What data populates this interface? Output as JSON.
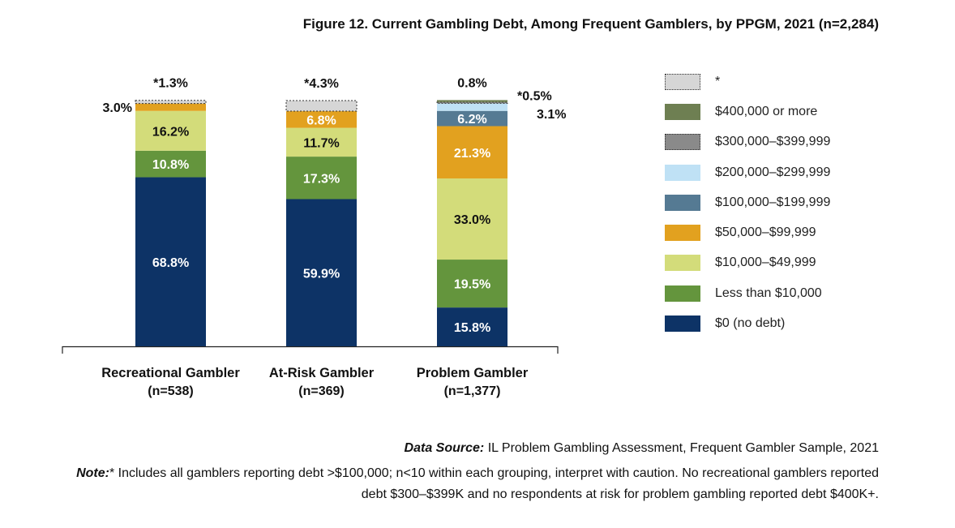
{
  "title": "Figure 12. Current Gambling Debt, Among Frequent Gamblers, by PPGM, 2021 (n=2,284)",
  "colors": {
    "star": "#d6d6d6",
    "400k": "#6e7f52",
    "300k": "#8a8a8a",
    "200k": "#bfe1f5",
    "100k": "#557a93",
    "50k": "#e2a11f",
    "10k": "#d3dc7a",
    "lt10k": "#64953d",
    "zero": "#0d3366"
  },
  "legend": [
    {
      "key": "star",
      "label": "*",
      "dashed": true
    },
    {
      "key": "400k",
      "label": "$400,000 or more",
      "dashed": false
    },
    {
      "key": "300k",
      "label": "$300,000–$399,999",
      "dashed": true
    },
    {
      "key": "200k",
      "label": "$200,000–$299,999",
      "dashed": false
    },
    {
      "key": "100k",
      "label": "$100,000–$199,999",
      "dashed": false
    },
    {
      "key": "50k",
      "label": "$50,000–$99,999",
      "dashed": false
    },
    {
      "key": "10k",
      "label": "$10,000–$49,999",
      "dashed": false
    },
    {
      "key": "lt10k",
      "label": "Less than $10,000",
      "dashed": false
    },
    {
      "key": "zero",
      "label": "$0 (no debt)",
      "dashed": false
    }
  ],
  "chart_data": {
    "type": "bar",
    "stacked": true,
    "title": "Figure 12. Current Gambling Debt, Among Frequent Gamblers, by PPGM, 2021 (n=2,284)",
    "ylim": [
      0,
      100
    ],
    "categories": [
      {
        "name": "Recreational Gambler",
        "n": "(n=538)"
      },
      {
        "name": "At-Risk Gambler",
        "n": "(n=369)"
      },
      {
        "name": "Problem Gambler",
        "n": "(n=1,377)"
      }
    ],
    "bars": [
      {
        "segments": [
          {
            "key": "zero",
            "value": 68.8,
            "label": "68.8%"
          },
          {
            "key": "lt10k",
            "value": 10.8,
            "label": "10.8%"
          },
          {
            "key": "10k",
            "value": 16.2,
            "label": "16.2%"
          },
          {
            "key": "50k",
            "value": 3.0,
            "label": "3.0%"
          },
          {
            "key": "star",
            "value": 1.3,
            "label": "*1.3%"
          }
        ]
      },
      {
        "segments": [
          {
            "key": "zero",
            "value": 59.9,
            "label": "59.9%"
          },
          {
            "key": "lt10k",
            "value": 17.3,
            "label": "17.3%"
          },
          {
            "key": "10k",
            "value": 11.7,
            "label": "11.7%"
          },
          {
            "key": "50k",
            "value": 6.8,
            "label": "6.8%"
          },
          {
            "key": "star",
            "value": 4.3,
            "label": "*4.3%"
          }
        ]
      },
      {
        "segments": [
          {
            "key": "zero",
            "value": 15.8,
            "label": "15.8%"
          },
          {
            "key": "lt10k",
            "value": 19.5,
            "label": "19.5%"
          },
          {
            "key": "10k",
            "value": 33.0,
            "label": "33.0%"
          },
          {
            "key": "50k",
            "value": 21.3,
            "label": "21.3%"
          },
          {
            "key": "100k",
            "value": 6.2,
            "label": "6.2%"
          },
          {
            "key": "200k",
            "value": 3.1,
            "label": "3.1%"
          },
          {
            "key": "300k",
            "value": 0.5,
            "label": "*0.5%"
          },
          {
            "key": "400k",
            "value": 0.8,
            "label": "0.8%"
          }
        ]
      }
    ]
  },
  "source": {
    "label": "Data Source:",
    "text": " IL Problem Gambling Assessment, Frequent Gambler Sample, 2021"
  },
  "note": {
    "label": "Note:",
    "text": "* Includes all gamblers reporting debt >$100,000; n<10 within each grouping, interpret with caution. No recreational gamblers reported debt $300–$399K and no respondents at risk for problem gambling reported debt $400K+."
  }
}
